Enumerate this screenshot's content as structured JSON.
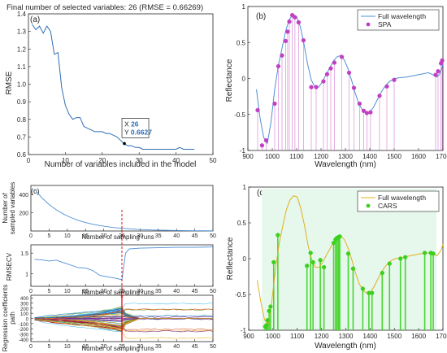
{
  "chart_data": [
    {
      "panel": "(a)",
      "type": "line",
      "title": "Final number of selected variables: 26  (RMSE = 0.66269)",
      "xlabel": "Number of variables included in the model",
      "ylabel": "RMSE",
      "xlim": [
        0,
        50
      ],
      "ylim": [
        0.6,
        1.4
      ],
      "xticks": [
        0,
        10,
        20,
        30,
        40,
        50
      ],
      "yticks": [
        0.6,
        0.7,
        0.8,
        0.9,
        1.0,
        1.1,
        1.2,
        1.3,
        1.4
      ],
      "color": "#2f6db5",
      "x": [
        1,
        2,
        3,
        4,
        5,
        6,
        7,
        8,
        9,
        10,
        11,
        12,
        13,
        14,
        15,
        16,
        17,
        18,
        19,
        20,
        21,
        22,
        23,
        24,
        25,
        26,
        27,
        28,
        29,
        30,
        31,
        32,
        33,
        34,
        35,
        36,
        37,
        38,
        39,
        40,
        41,
        42,
        43,
        44,
        45
      ],
      "y": [
        1.34,
        1.31,
        1.33,
        1.29,
        1.33,
        1.3,
        1.17,
        1.18,
        0.98,
        0.88,
        0.83,
        0.8,
        0.81,
        0.81,
        0.76,
        0.75,
        0.74,
        0.73,
        0.73,
        0.73,
        0.72,
        0.72,
        0.71,
        0.7,
        0.68,
        0.66,
        0.65,
        0.65,
        0.64,
        0.64,
        0.63,
        0.63,
        0.63,
        0.63,
        0.63,
        0.63,
        0.63,
        0.63,
        0.63,
        0.63,
        0.64,
        0.63,
        0.63,
        0.63,
        0.63
      ],
      "datatip": {
        "x_label": "X",
        "x_value": "26",
        "y_label": "Y",
        "y_value": "0.6627",
        "x": 26,
        "y": 0.6627
      }
    },
    {
      "panel": "(b)",
      "type": "line",
      "xlabel": "Wavelength (nm)",
      "ylabel": "Reflectance",
      "xlim": [
        900,
        1700
      ],
      "ylim": [
        -1,
        1
      ],
      "xticks": [
        900,
        1000,
        1100,
        1200,
        1300,
        1400,
        1500,
        1600,
        1700
      ],
      "xtick_labels": [
        "900",
        "1000",
        "1100",
        "1200",
        "1300",
        "1400",
        "1500",
        "1600",
        "1700"
      ],
      "yticks": [
        -1,
        -0.5,
        0,
        0.5,
        1
      ],
      "ytick_labels": [
        "-1",
        "-0.5",
        "0",
        "0.5",
        "1"
      ],
      "legend": {
        "position": "top-right",
        "entries": [
          "Full wavelength",
          "SPA"
        ]
      },
      "line_color": "#4f8fd6",
      "marker_color": "#c23fc2",
      "series": [
        {
          "name": "Full wavelength",
          "x": [
            935,
            950,
            965,
            980,
            995,
            1010,
            1025,
            1040,
            1055,
            1070,
            1085,
            1100,
            1115,
            1130,
            1145,
            1160,
            1175,
            1190,
            1205,
            1220,
            1235,
            1250,
            1265,
            1280,
            1295,
            1310,
            1325,
            1340,
            1355,
            1370,
            1385,
            1400,
            1415,
            1430,
            1445,
            1460,
            1475,
            1490,
            1505,
            1520,
            1550,
            1580,
            1610,
            1640,
            1660,
            1675,
            1685,
            1695,
            1700
          ],
          "y": [
            -0.15,
            -0.55,
            -0.82,
            -0.9,
            -0.6,
            -0.15,
            0.18,
            0.42,
            0.66,
            0.82,
            0.89,
            0.86,
            0.72,
            0.48,
            0.2,
            -0.02,
            -0.12,
            -0.12,
            -0.05,
            0.05,
            0.14,
            0.24,
            0.3,
            0.32,
            0.26,
            0.14,
            -0.02,
            -0.2,
            -0.35,
            -0.44,
            -0.48,
            -0.47,
            -0.4,
            -0.3,
            -0.2,
            -0.12,
            -0.06,
            -0.02,
            0,
            0.01,
            0.02,
            0.04,
            0.06,
            0.08,
            0.05,
            0.02,
            0.05,
            0.14,
            0.2
          ]
        },
        {
          "name": "SPA",
          "x": [
            940,
            958,
            975,
            1010,
            1025,
            1040,
            1055,
            1063,
            1070,
            1082,
            1093,
            1108,
            1128,
            1160,
            1180,
            1210,
            1225,
            1240,
            1255,
            1285,
            1315,
            1335,
            1358,
            1375,
            1388,
            1403,
            1440,
            1470,
            1500,
            1670,
            1680,
            1692,
            1697
          ],
          "y": [
            -0.44,
            -0.93,
            -0.86,
            -0.35,
            0.17,
            0.32,
            0.52,
            0.65,
            0.79,
            0.88,
            0.85,
            0.78,
            0.53,
            -0.12,
            -0.12,
            -0.04,
            0.06,
            0.14,
            0.22,
            0.3,
            0.08,
            -0.13,
            -0.35,
            -0.45,
            -0.48,
            -0.47,
            -0.24,
            -0.11,
            -0.02,
            0.05,
            0.1,
            0.21,
            0.25
          ]
        }
      ]
    },
    {
      "panel": "(c)",
      "type": "line",
      "subplots": [
        {
          "name": "sampled",
          "xlabel": "Number of sampling runs",
          "ylabel": "Number of sampled variables",
          "xlim": [
            0,
            50
          ],
          "ylim": [
            0,
            500
          ],
          "xticks": [
            0,
            5,
            10,
            15,
            20,
            25,
            30,
            35,
            40,
            45,
            50
          ],
          "yticks": [
            200,
            400
          ],
          "x": [
            1,
            3,
            5,
            7,
            9,
            11,
            13,
            15,
            17,
            19,
            21,
            23,
            25,
            27,
            29,
            31,
            33,
            35,
            37,
            39,
            41,
            43,
            45,
            47,
            50
          ],
          "y": [
            460,
            365,
            290,
            232,
            185,
            147,
            117,
            93,
            74,
            59,
            47,
            37,
            30,
            24,
            19,
            15,
            12,
            10,
            8,
            6,
            5,
            4,
            3,
            3,
            2
          ]
        },
        {
          "name": "rmsecv",
          "xlabel": "Number of sampling runs",
          "ylabel": "RMSECV",
          "xlim": [
            0,
            50
          ],
          "ylim": [
            0.7,
            1.7
          ],
          "xticks": [
            0,
            5,
            10,
            15,
            20,
            25,
            30,
            35,
            40,
            45,
            50
          ],
          "yticks": [
            1,
            1.5
          ],
          "x": [
            1,
            3,
            5,
            7,
            9,
            11,
            13,
            15,
            17,
            19,
            21,
            23,
            25,
            26,
            27,
            30,
            35,
            40,
            45,
            50
          ],
          "y": [
            1.35,
            1.34,
            1.31,
            1.33,
            1.27,
            1.21,
            1.15,
            1.14,
            1.08,
            0.96,
            0.93,
            0.9,
            0.86,
            1.5,
            1.6,
            1.62,
            1.63,
            1.64,
            1.64,
            1.65
          ]
        },
        {
          "name": "coefficients",
          "xlabel": "Number of sampling runs",
          "ylabel": "Regression coefficients path",
          "xlim": [
            0,
            50
          ],
          "ylim": [
            -450,
            450
          ],
          "xticks": [
            0,
            5,
            10,
            15,
            20,
            25,
            30,
            35,
            40,
            45,
            50
          ],
          "yticks": [
            -400,
            -300,
            -200,
            -100,
            0,
            100,
            200,
            300,
            400
          ],
          "optimal_run": 25
        }
      ]
    },
    {
      "panel": "(d)",
      "type": "line",
      "xlabel": "Wavelength (nm)",
      "ylabel": "Reflectance",
      "xlim": [
        900,
        1700
      ],
      "ylim": [
        -1,
        1
      ],
      "xticks": [
        900,
        1000,
        1100,
        1200,
        1300,
        1400,
        1500,
        1600,
        1700
      ],
      "yticks": [
        -1,
        -0.5,
        0,
        0.5,
        1
      ],
      "ytick_labels": [
        "-1",
        "-0.5",
        "0",
        "0.5",
        "1"
      ],
      "legend": {
        "position": "top-right",
        "entries": [
          "Full wavelength",
          "CARS"
        ]
      },
      "line_color": "#e0b020",
      "marker_color": "#39d01e",
      "series": [
        {
          "name": "Full wavelength",
          "x": [
            935,
            950,
            965,
            980,
            995,
            1010,
            1025,
            1040,
            1055,
            1070,
            1085,
            1100,
            1115,
            1130,
            1145,
            1160,
            1175,
            1190,
            1205,
            1220,
            1235,
            1250,
            1265,
            1280,
            1295,
            1310,
            1325,
            1340,
            1355,
            1370,
            1385,
            1400,
            1415,
            1430,
            1445,
            1460,
            1475,
            1490,
            1505,
            1520,
            1550,
            1580,
            1610,
            1640,
            1660,
            1675,
            1685,
            1695,
            1700
          ],
          "y": [
            -0.3,
            -0.6,
            -0.85,
            -0.92,
            -0.6,
            -0.15,
            0.2,
            0.45,
            0.68,
            0.82,
            0.88,
            0.86,
            0.7,
            0.46,
            0.18,
            -0.02,
            -0.12,
            -0.12,
            -0.05,
            0.05,
            0.14,
            0.24,
            0.3,
            0.32,
            0.26,
            0.14,
            -0.02,
            -0.2,
            -0.35,
            -0.44,
            -0.48,
            -0.47,
            -0.4,
            -0.3,
            -0.2,
            -0.12,
            -0.06,
            -0.02,
            0,
            0.01,
            0.03,
            0.05,
            0.07,
            0.08,
            0.06,
            0.04,
            0.08,
            0.14,
            0.2
          ]
        },
        {
          "name": "CARS",
          "x": [
            968,
            973,
            978,
            984,
            990,
            1003,
            1020,
            1140,
            1155,
            1165,
            1195,
            1210,
            1250,
            1258,
            1264,
            1270,
            1275,
            1310,
            1330,
            1370,
            1395,
            1408,
            1450,
            1480,
            1525,
            1545,
            1625,
            1650,
            1660
          ],
          "y": [
            -0.95,
            -0.93,
            -0.86,
            -0.73,
            -0.67,
            -0.05,
            0.33,
            -0.1,
            0.08,
            -0.05,
            -0.02,
            -0.12,
            0.22,
            0.27,
            0.29,
            0.3,
            0.31,
            0.07,
            -0.14,
            -0.42,
            -0.48,
            -0.48,
            -0.2,
            -0.07,
            0.0,
            0.02,
            0.08,
            0.08,
            0.07
          ]
        }
      ]
    }
  ]
}
